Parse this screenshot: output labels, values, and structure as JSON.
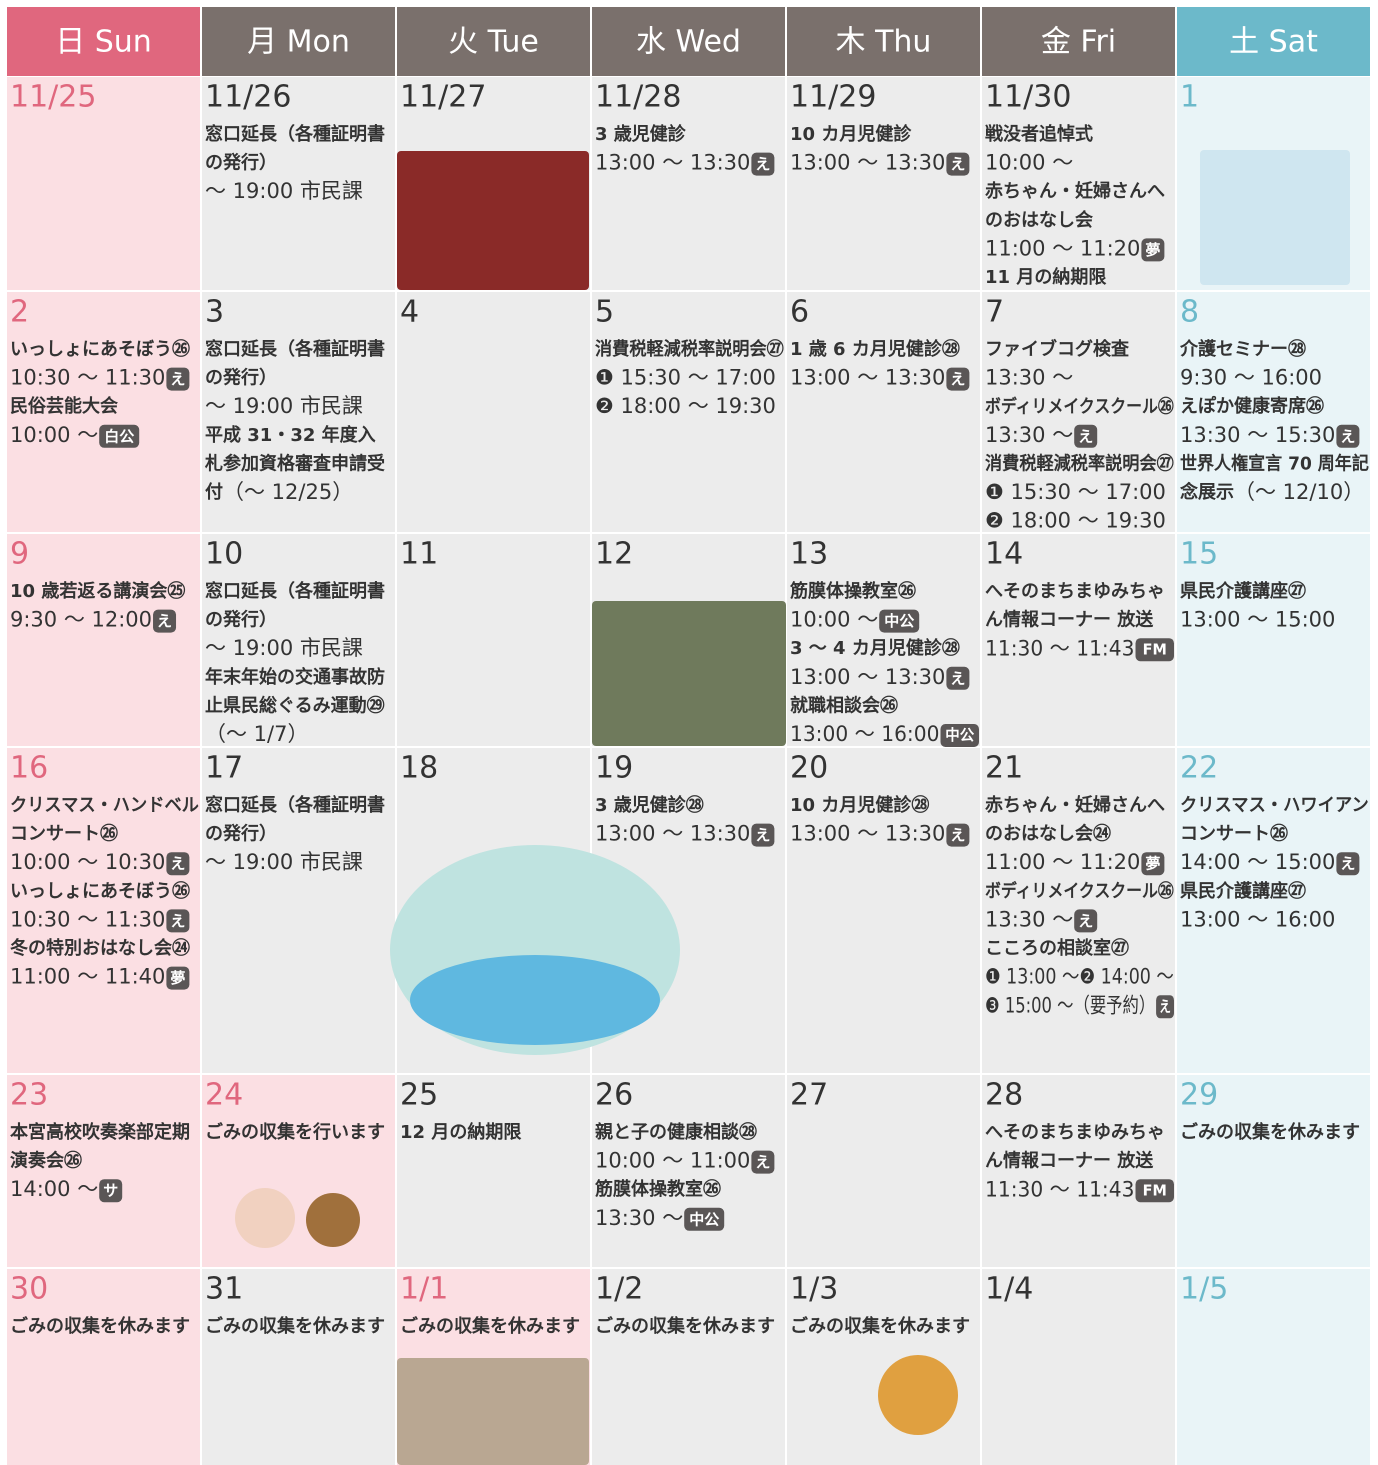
{
  "headers": [
    "日 Sun",
    "月 Mon",
    "火 Tue",
    "水 Wed",
    "木 Thu",
    "金 Fri",
    "土 Sat"
  ],
  "weeks": [
    [
      {
        "date": "11/25",
        "lines": []
      },
      {
        "date": "11/26",
        "lines": [
          {
            "title": "窓口延長（各種証明書"
          },
          {
            "title": "の発行）"
          },
          {
            "time": "～ 19:00 市民課"
          }
        ]
      },
      {
        "date": "11/27",
        "lines": []
      },
      {
        "date": "11/28",
        "lines": [
          {
            "title": "3 歳児健診"
          },
          {
            "time": "13:00 ～ 13:30",
            "badge": "え"
          }
        ]
      },
      {
        "date": "11/29",
        "lines": [
          {
            "title": "10 カ月児健診"
          },
          {
            "time": "13:00 ～ 13:30",
            "badge": "え"
          }
        ]
      },
      {
        "date": "11/30",
        "lines": [
          {
            "title": "戦没者追悼式"
          },
          {
            "time": "10:00 ～"
          },
          {
            "title": "赤ちゃん・妊婦さんへ"
          },
          {
            "title": "のおはなし会"
          },
          {
            "time": "11:00 ～ 11:20",
            "badge": "夢"
          },
          {
            "title": "11 月の納期限"
          }
        ]
      },
      {
        "date": "1",
        "lines": []
      }
    ],
    [
      {
        "date": "2",
        "lines": [
          {
            "title": "いっしょにあそぼう㉖"
          },
          {
            "time": "10:30 ～ 11:30",
            "badge": "え"
          },
          {
            "title": "民俗芸能大会"
          },
          {
            "time": "10:00 ～",
            "badge": "白公"
          }
        ]
      },
      {
        "date": "3",
        "lines": [
          {
            "title": "窓口延長（各種証明書"
          },
          {
            "title": "の発行）"
          },
          {
            "time": "～ 19:00 市民課"
          },
          {
            "title": "平成 31・32 年度入"
          },
          {
            "title": "札参加資格審査申請受"
          },
          {
            "title": "付",
            "time": "（～ 12/25）"
          }
        ]
      },
      {
        "date": "4",
        "lines": []
      },
      {
        "date": "5",
        "lines": [
          {
            "title": "消費税軽減税率説明会㉗"
          },
          {
            "time": "❶ 15:30 ～ 17:00"
          },
          {
            "time": "❷ 18:00 ～ 19:30"
          }
        ]
      },
      {
        "date": "6",
        "lines": [
          {
            "title": "1 歳 6 カ月児健診㉘"
          },
          {
            "time": "13:00 ～ 13:30",
            "badge": "え"
          }
        ]
      },
      {
        "date": "7",
        "lines": [
          {
            "title": "ファイブコグ検査"
          },
          {
            "time": "13:30 ～"
          },
          {
            "title": "ボディリメイクスクール㉖"
          },
          {
            "time": "13:30 ～",
            "badge": "え"
          },
          {
            "title": "消費税軽減税率説明会㉗"
          },
          {
            "time": "❶ 15:30 ～ 17:00"
          },
          {
            "time": "❷ 18:00 ～ 19:30"
          }
        ]
      },
      {
        "date": "8",
        "lines": [
          {
            "title": "介護セミナー㉘"
          },
          {
            "time": "9:30 ～ 16:00"
          },
          {
            "title": "えぽか健康寄席㉖"
          },
          {
            "time": "13:30 ～ 15:30",
            "badge": "え"
          },
          {
            "title": "世界人権宣言 70 周年記"
          },
          {
            "title": "念展示",
            "time": "（～ 12/10）"
          }
        ]
      }
    ],
    [
      {
        "date": "9",
        "lines": [
          {
            "title": "10 歳若返る講演会㉕"
          },
          {
            "time": "9:30 ～ 12:00",
            "badge": "え"
          }
        ]
      },
      {
        "date": "10",
        "lines": [
          {
            "title": "窓口延長（各種証明書"
          },
          {
            "title": "の発行）"
          },
          {
            "time": "～ 19:00 市民課"
          },
          {
            "title": "年末年始の交通事故防"
          },
          {
            "title": "止県民総ぐるみ運動㉙"
          },
          {
            "time": "（～ 1/7）"
          }
        ]
      },
      {
        "date": "11",
        "lines": []
      },
      {
        "date": "12",
        "lines": []
      },
      {
        "date": "13",
        "lines": [
          {
            "title": "筋膜体操教室㉖"
          },
          {
            "time": "10:00 ～",
            "badge": "中公"
          },
          {
            "title": "3 ～ 4 カ月児健診㉘"
          },
          {
            "time": "13:00 ～ 13:30",
            "badge": "え"
          },
          {
            "title": "就職相談会㉖"
          },
          {
            "time": "13:00 ～ 16:00",
            "badge": "中公"
          }
        ]
      },
      {
        "date": "14",
        "lines": [
          {
            "title": "へそのまちまゆみちゃ"
          },
          {
            "title": "ん情報コーナー 放送"
          },
          {
            "time": "11:30 ～ 11:43",
            "badge": "FM"
          }
        ]
      },
      {
        "date": "15",
        "lines": [
          {
            "title": "県民介護講座㉗"
          },
          {
            "time": "13:00 ～ 15:00"
          }
        ]
      }
    ],
    [
      {
        "date": "16",
        "lines": [
          {
            "title": "クリスマス・ハンドベル"
          },
          {
            "title": "コンサート㉖"
          },
          {
            "time": "10:00 ～ 10:30",
            "badge": "え"
          },
          {
            "title": "いっしょにあそぼう㉖"
          },
          {
            "time": "10:30 ～ 11:30",
            "badge": "え"
          },
          {
            "title": "冬の特別おはなし会㉔"
          },
          {
            "time": "11:00 ～ 11:40",
            "badge": "夢"
          }
        ]
      },
      {
        "date": "17",
        "lines": [
          {
            "title": "窓口延長（各種証明書"
          },
          {
            "title": "の発行）"
          },
          {
            "time": "～ 19:00 市民課"
          }
        ]
      },
      {
        "date": "18",
        "lines": []
      },
      {
        "date": "19",
        "lines": [
          {
            "title": "3 歳児健診㉘"
          },
          {
            "time": "13:00 ～ 13:30",
            "badge": "え"
          }
        ]
      },
      {
        "date": "20",
        "lines": [
          {
            "title": "10 カ月児健診㉘"
          },
          {
            "time": "13:00 ～ 13:30",
            "badge": "え"
          }
        ]
      },
      {
        "date": "21",
        "lines": [
          {
            "title": "赤ちゃん・妊婦さんへ"
          },
          {
            "title": "のおはなし会㉔"
          },
          {
            "time": "11:00 ～ 11:20",
            "badge": "夢"
          },
          {
            "title": "ボディリメイクスクール㉖"
          },
          {
            "time": "13:30 ～",
            "badge": "え"
          },
          {
            "title": "こころの相談室㉗"
          },
          {
            "time": "❶ 13:00 ～❷ 14:00 ～"
          },
          {
            "time": "❸ 15:00 ～（要予約）",
            "badge": "え"
          }
        ]
      },
      {
        "date": "22",
        "lines": [
          {
            "title": "クリスマス・ハワイアン"
          },
          {
            "title": "コンサート㉖"
          },
          {
            "time": "14:00 ～ 15:00",
            "badge": "え"
          },
          {
            "title": "県民介護講座㉗"
          },
          {
            "time": "13:00 ～ 16:00"
          }
        ]
      }
    ],
    [
      {
        "date": "23",
        "lines": [
          {
            "title": "本宮高校吹奏楽部定期"
          },
          {
            "title": "演奏会㉖"
          },
          {
            "time": "14:00 ～",
            "badge": "サ"
          }
        ]
      },
      {
        "date": "24",
        "holiday": true,
        "lines": [
          {
            "title": "ごみの収集を行います"
          }
        ]
      },
      {
        "date": "25",
        "lines": [
          {
            "title": "12 月の納期限"
          }
        ]
      },
      {
        "date": "26",
        "lines": [
          {
            "title": "親と子の健康相談㉘"
          },
          {
            "time": "10:00 ～ 11:00",
            "badge": "え"
          },
          {
            "title": "筋膜体操教室㉖"
          },
          {
            "time": "13:30 ～",
            "badge": "中公"
          }
        ]
      },
      {
        "date": "27",
        "lines": []
      },
      {
        "date": "28",
        "lines": [
          {
            "title": "へそのまちまゆみちゃ"
          },
          {
            "title": "ん情報コーナー 放送"
          },
          {
            "time": "11:30 ～ 11:43",
            "badge": "FM"
          }
        ]
      },
      {
        "date": "29",
        "lines": [
          {
            "title": "ごみの収集を休みます"
          }
        ]
      }
    ],
    [
      {
        "date": "30",
        "lines": [
          {
            "title": "ごみの収集を休みます"
          }
        ]
      },
      {
        "date": "31",
        "lines": [
          {
            "title": "ごみの収集を休みます"
          }
        ]
      },
      {
        "date": "1/1",
        "holiday": true,
        "lines": [
          {
            "title": "ごみの収集を休みます"
          }
        ]
      },
      {
        "date": "1/2",
        "lines": [
          {
            "title": "ごみの収集を休みます"
          }
        ]
      },
      {
        "date": "1/3",
        "lines": [
          {
            "title": "ごみの収集を休みます"
          }
        ]
      },
      {
        "date": "1/4",
        "lines": []
      },
      {
        "date": "1/5",
        "lines": []
      }
    ]
  ]
}
